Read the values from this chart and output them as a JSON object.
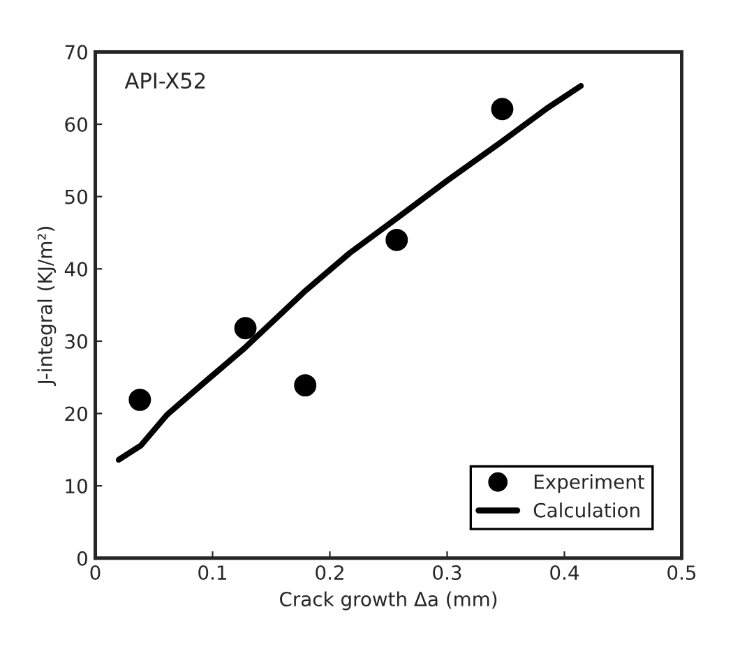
{
  "chart_data": {
    "type": "scatter",
    "xlabel": "Crack growth Δa (mm)",
    "ylabel": "J-integral (KJ/m²)",
    "annotations": [
      "API-X52"
    ],
    "series": [
      {
        "name": "Experiment",
        "color": "#000000",
        "marker": "circle",
        "x": [
          0.038,
          0.128,
          0.179,
          0.257,
          0.347
        ],
        "values": [
          21.9,
          31.8,
          23.9,
          44.0,
          62.1
        ]
      },
      {
        "name": "Calculation",
        "type": "line",
        "color": "#000000",
        "line_style": "solid",
        "x": [
          0.02,
          0.039,
          0.061,
          0.093,
          0.127,
          0.178,
          0.217,
          0.258,
          0.3,
          0.345,
          0.386,
          0.414
        ],
        "values": [
          13.6,
          15.6,
          19.8,
          24.3,
          29.0,
          36.8,
          42.2,
          47.1,
          52.2,
          57.4,
          62.3,
          65.3
        ]
      }
    ],
    "xlim": [
      0,
      0.5
    ],
    "xticks": [
      0,
      0.1,
      0.2,
      0.3,
      0.4,
      0.5
    ],
    "ylim": [
      0,
      70
    ],
    "yticks": [
      0,
      10,
      20,
      30,
      40,
      50,
      60,
      70
    ],
    "grid": false,
    "legend": "bottom right"
  }
}
